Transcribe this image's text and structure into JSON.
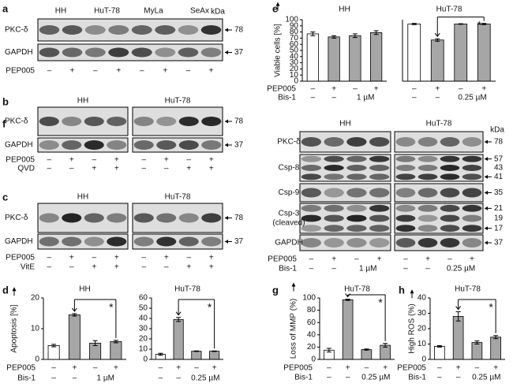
{
  "blots": [
    {
      "letter": "a",
      "kda": "kDa",
      "condition_names": [
        "PEP005"
      ],
      "groups": [
        {
          "name": "HH",
          "conditions": [
            [
              "–",
              "+"
            ]
          ]
        },
        {
          "name": "HuT-78",
          "conditions": [
            [
              "–",
              "+"
            ]
          ]
        },
        {
          "name": "MyLa",
          "conditions": [
            [
              "–",
              "+"
            ]
          ]
        },
        {
          "name": "SeAx",
          "conditions": [
            [
              "–",
              "+"
            ]
          ]
        }
      ],
      "rows": [
        {
          "label": "PKC-δ",
          "markers": [
            "78"
          ]
        },
        {
          "label": "GAPDH",
          "markers": [
            "37"
          ]
        }
      ]
    },
    {
      "letter": "b",
      "condition_names": [
        "PEP005",
        "QVD"
      ],
      "groups": [
        {
          "name": "HH",
          "conditions": [
            [
              "–",
              "+",
              "–",
              "+"
            ],
            [
              "–",
              "–",
              "+",
              "+"
            ]
          ]
        },
        {
          "name": "HuT-78",
          "conditions": [
            [
              "–",
              "+",
              "–",
              "+"
            ],
            [
              "–",
              "–",
              "+",
              "+"
            ]
          ]
        }
      ],
      "rows": [
        {
          "label": "PKC-δ",
          "markers": [
            "78"
          ]
        },
        {
          "label": "GAPDH",
          "markers": [
            "37"
          ]
        }
      ]
    },
    {
      "letter": "c",
      "condition_names": [
        "PEP005",
        "VitE"
      ],
      "groups": [
        {
          "name": "HH",
          "conditions": [
            [
              "–",
              "+",
              "–",
              "+"
            ],
            [
              "–",
              "–",
              "+",
              "+"
            ]
          ]
        },
        {
          "name": "HuT-78",
          "conditions": [
            [
              "–",
              "+",
              "–",
              "+"
            ],
            [
              "–",
              "–",
              "+",
              "+"
            ]
          ]
        }
      ],
      "rows": [
        {
          "label": "PKC-δ",
          "markers": [
            "78"
          ]
        },
        {
          "label": "GAPDH",
          "markers": [
            "37"
          ]
        }
      ]
    },
    {
      "letter": "f",
      "kda": "kDa",
      "condition_names": [
        "PEP005",
        "Bis-1"
      ],
      "groups": [
        {
          "name": "HH",
          "conditions": [
            [
              "–",
              "+",
              "–",
              "+"
            ],
            [
              "–",
              "–",
              "1 µM"
            ]
          ]
        },
        {
          "name": "HuT-78",
          "conditions": [
            [
              "–",
              "+",
              "–",
              "+"
            ],
            [
              "–",
              "–",
              "0.25 µM"
            ]
          ]
        }
      ],
      "rows": [
        {
          "label": "PKC-δ",
          "markers": [
            "78"
          ]
        },
        {
          "label": "Csp-8",
          "markers": [
            "57",
            "43",
            "41"
          ]
        },
        {
          "label": "Csp-9",
          "markers": [
            "35"
          ]
        },
        {
          "label": "Csp-3",
          "sublabel": "(cleaved)",
          "markers": [
            "21",
            "19",
            "17"
          ]
        },
        {
          "label": "GAPDH",
          "markers": [
            "37"
          ]
        }
      ]
    }
  ],
  "chart_data": [
    {
      "type": "bar",
      "letter": "d",
      "title": "HH",
      "ylabel": "Apoptosis [%]",
      "values": [
        4.5,
        14.5,
        5.3,
        5.8
      ],
      "errors": [
        0.4,
        0.4,
        0.8,
        0.4
      ],
      "colors": [
        "#ffffff",
        "#a6a6a6",
        "#a6a6a6",
        "#a6a6a6"
      ],
      "ylim": [
        0,
        20
      ],
      "yticks": [
        0,
        10,
        20
      ],
      "annotation": "*",
      "conditions": [
        {
          "name": "PEP005",
          "labels": [
            "–",
            "+",
            "–",
            "+"
          ]
        },
        {
          "name": "Bis-1",
          "labels": [
            "–",
            "–",
            "1 µM"
          ]
        }
      ]
    },
    {
      "type": "bar",
      "title": "HuT-78",
      "values": [
        5,
        39,
        8,
        8
      ],
      "errors": [
        1,
        2,
        0.3,
        0.3
      ],
      "colors": [
        "#ffffff",
        "#a6a6a6",
        "#a6a6a6",
        "#a6a6a6"
      ],
      "ylim": [
        0,
        60
      ],
      "yticks": [
        0,
        10,
        20,
        30,
        40,
        50,
        60
      ],
      "annotation": "*",
      "conditions": [
        {
          "labels": [
            "–",
            "+",
            "–",
            "+"
          ]
        },
        {
          "labels": [
            "–",
            "–",
            "0.25 µM"
          ]
        }
      ]
    },
    {
      "type": "bar",
      "letter": "e",
      "title": "HH",
      "ylabel": "Viable cells [%]",
      "values": [
        77,
        72,
        74,
        79
      ],
      "errors": [
        3,
        2,
        3,
        3
      ],
      "colors": [
        "#ffffff",
        "#a6a6a6",
        "#a6a6a6",
        "#a6a6a6"
      ],
      "ylim": [
        0,
        100
      ],
      "yticks": [
        0,
        10,
        20,
        30,
        40,
        50,
        60,
        70,
        80,
        90,
        100
      ],
      "conditions": [
        {
          "name": "PEP005",
          "labels": [
            "–",
            "+",
            "–",
            "+"
          ]
        },
        {
          "name": "Bis-1",
          "labels": [
            "–",
            "–",
            "1 µM"
          ]
        }
      ]
    },
    {
      "type": "bar",
      "title": "HuT-78",
      "values": [
        93,
        67,
        93,
        93
      ],
      "errors": [
        1,
        2,
        0.5,
        1
      ],
      "colors": [
        "#ffffff",
        "#a6a6a6",
        "#a6a6a6",
        "#a6a6a6"
      ],
      "ylim": [
        0,
        100
      ],
      "annotation": "*",
      "conditions": [
        {
          "labels": [
            "–",
            "+",
            "–",
            "+"
          ]
        },
        {
          "labels": [
            "–",
            "–",
            "0.25 µM"
          ]
        }
      ]
    },
    {
      "type": "bar",
      "letter": "g",
      "title": "HuT-78",
      "ylabel": "Loss of MMP (%)",
      "values": [
        15,
        97,
        16,
        23
      ],
      "errors": [
        3,
        1,
        1,
        3
      ],
      "colors": [
        "#ffffff",
        "#a6a6a6",
        "#a6a6a6",
        "#a6a6a6"
      ],
      "ylim": [
        0,
        100
      ],
      "yticks": [
        0,
        20,
        40,
        60,
        80,
        100
      ],
      "annotation": "*",
      "conditions": [
        {
          "name": "PEP005",
          "labels": [
            "–",
            "+",
            "–",
            "+"
          ]
        },
        {
          "name": "Bis-1",
          "labels": [
            "–",
            "–",
            "0.25 µM"
          ]
        }
      ]
    },
    {
      "type": "bar",
      "letter": "h",
      "title": "HuT-78",
      "ylabel": "High ROS (%)",
      "values": [
        8.5,
        28,
        11,
        14.5
      ],
      "errors": [
        0.5,
        3,
        1,
        1
      ],
      "colors": [
        "#ffffff",
        "#a6a6a6",
        "#a6a6a6",
        "#a6a6a6"
      ],
      "ylim": [
        0,
        40
      ],
      "yticks": [
        0,
        10,
        20,
        30,
        40
      ],
      "annotation": "*",
      "conditions": [
        {
          "name": "PEP005",
          "labels": [
            "–",
            "+",
            "–",
            "+"
          ]
        },
        {
          "name": "Bis-1",
          "labels": [
            "–",
            "–",
            "0.25 µM"
          ]
        }
      ]
    }
  ]
}
